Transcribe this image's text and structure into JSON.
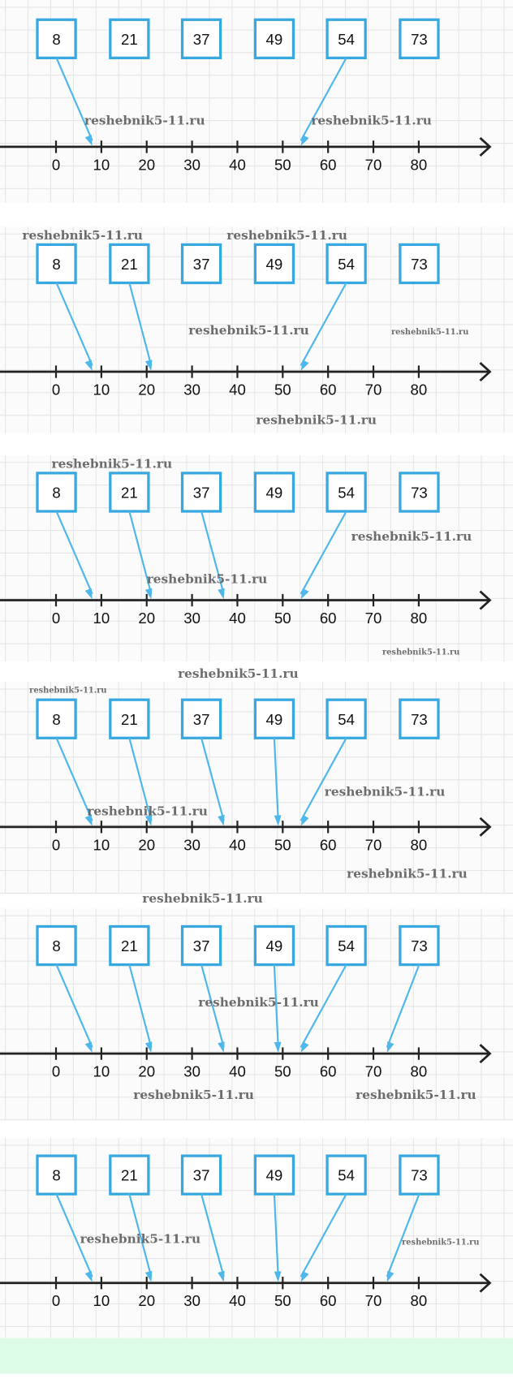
{
  "colors": {
    "box": "#3aa8e0",
    "arrow": "#4fb8ea",
    "axis": "#222",
    "grid": "#e6e6e6",
    "footer": "#dcfce8"
  },
  "numbers": [
    8,
    21,
    37,
    49,
    54,
    73
  ],
  "axis_ticks": [
    0,
    10,
    20,
    30,
    40,
    50,
    60,
    70,
    80
  ],
  "panels": [
    {
      "arrows": [
        8,
        54
      ],
      "watermarks": [
        {
          "text": "reshebnik5-11.ru",
          "size": "l"
        },
        {
          "text": "reshebnik5-11.ru",
          "size": "l"
        }
      ]
    },
    {
      "arrows": [
        8,
        21,
        54
      ],
      "watermarks": [
        {
          "text": "reshebnik5-11.ru",
          "size": "l"
        },
        {
          "text": "reshebnik5-11.ru",
          "size": "l"
        },
        {
          "text": "reshebnik5-11.ru",
          "size": "l"
        },
        {
          "text": "reshebnik5-11.ru",
          "size": "s"
        },
        {
          "text": "reshebnik5-11.ru",
          "size": "l"
        }
      ]
    },
    {
      "arrows": [
        8,
        21,
        37,
        54
      ],
      "watermarks": [
        {
          "text": "reshebnik5-11.ru",
          "size": "l"
        },
        {
          "text": "reshebnik5-11.ru",
          "size": "l"
        },
        {
          "text": "reshebnik5-11.ru",
          "size": "l"
        },
        {
          "text": "reshebnik5-11.ru",
          "size": "s"
        },
        {
          "text": "reshebnik5-11.ru",
          "size": "l"
        }
      ]
    },
    {
      "arrows": [
        8,
        21,
        37,
        49,
        54
      ],
      "watermarks": [
        {
          "text": "reshebnik5-11.ru",
          "size": "s"
        },
        {
          "text": "reshebnik5-11.ru",
          "size": "l"
        },
        {
          "text": "reshebnik5-11.ru",
          "size": "l"
        },
        {
          "text": "reshebnik5-11.ru",
          "size": "l"
        },
        {
          "text": "reshebnik5-11.ru",
          "size": "l"
        }
      ]
    },
    {
      "arrows": [
        8,
        21,
        37,
        49,
        54,
        73
      ],
      "watermarks": [
        {
          "text": "reshebnik5-11.ru",
          "size": "l"
        },
        {
          "text": "reshebnik5-11.ru",
          "size": "l"
        },
        {
          "text": "reshebnik5-11.ru",
          "size": "l"
        }
      ]
    },
    {
      "arrows": [
        8,
        21,
        37,
        49,
        54,
        73
      ],
      "watermarks": [
        {
          "text": "reshebnik5-11.ru",
          "size": "l"
        },
        {
          "text": "reshebnik5-11.ru",
          "size": "s"
        }
      ]
    }
  ]
}
